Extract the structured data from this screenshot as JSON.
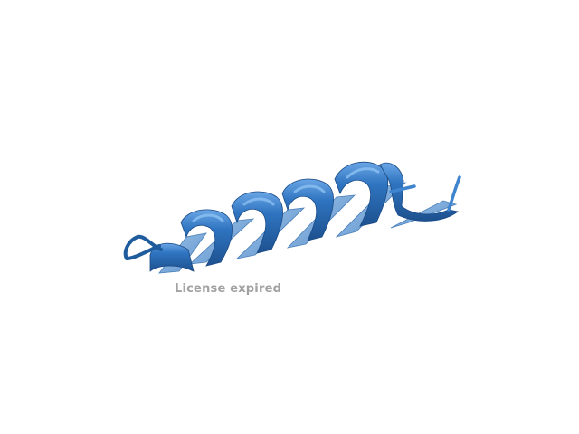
{
  "viewer": {
    "watermark": "License expired",
    "background_color": "#ffffff",
    "ribbon_color": "#2f74c0",
    "ribbon_highlight": "#5d9be0",
    "ribbon_shadow": "#1d518f",
    "ribbon_underside": "#8bb6e0"
  }
}
